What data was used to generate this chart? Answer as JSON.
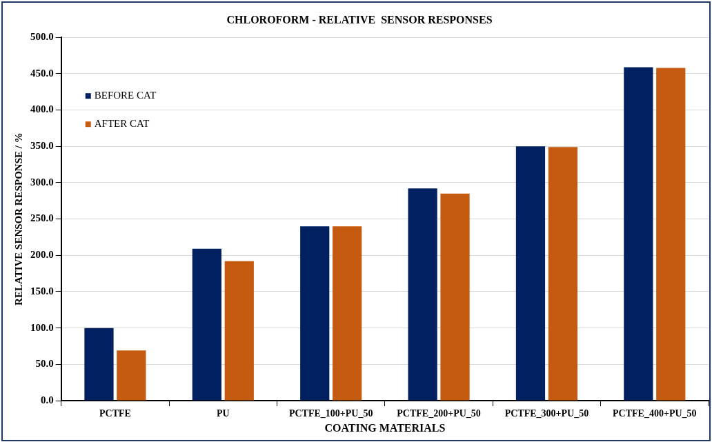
{
  "chart_data": {
    "type": "bar",
    "title": "CHLOROFORM - RELATIVE  SENSOR RESPONSES",
    "xlabel": "COATING MATERIALS",
    "ylabel": "RELATIVE SENSOR RESPONSE / %",
    "categories": [
      "PCTFE",
      "PU",
      "PCTFE_100+PU_50",
      "PCTFE_200+PU_50",
      "PCTFE_300+PU_50",
      "PCTFE_400+PU_50"
    ],
    "series": [
      {
        "name": "BEFORE CAT",
        "color": "#002060",
        "values": [
          100,
          209,
          240,
          292,
          350,
          459
        ]
      },
      {
        "name": "AFTER CAT",
        "color": "#c55a11",
        "values": [
          69,
          192,
          240,
          285,
          349,
          458
        ]
      }
    ],
    "ylim": [
      0,
      500
    ],
    "yticks": [
      {
        "value": 0,
        "label": "0.0"
      },
      {
        "value": 50,
        "label": "50.0"
      },
      {
        "value": 100,
        "label": "100.0"
      },
      {
        "value": 150,
        "label": "150.0"
      },
      {
        "value": 200,
        "label": "200.0"
      },
      {
        "value": 250,
        "label": "250.0"
      },
      {
        "value": 300,
        "label": "300.0"
      },
      {
        "value": 350,
        "label": "350.0"
      },
      {
        "value": 400,
        "label": "400.0"
      },
      {
        "value": 450,
        "label": "450.0"
      },
      {
        "value": 500,
        "label": "500.0"
      }
    ],
    "grid": "y",
    "legend": "top left"
  }
}
